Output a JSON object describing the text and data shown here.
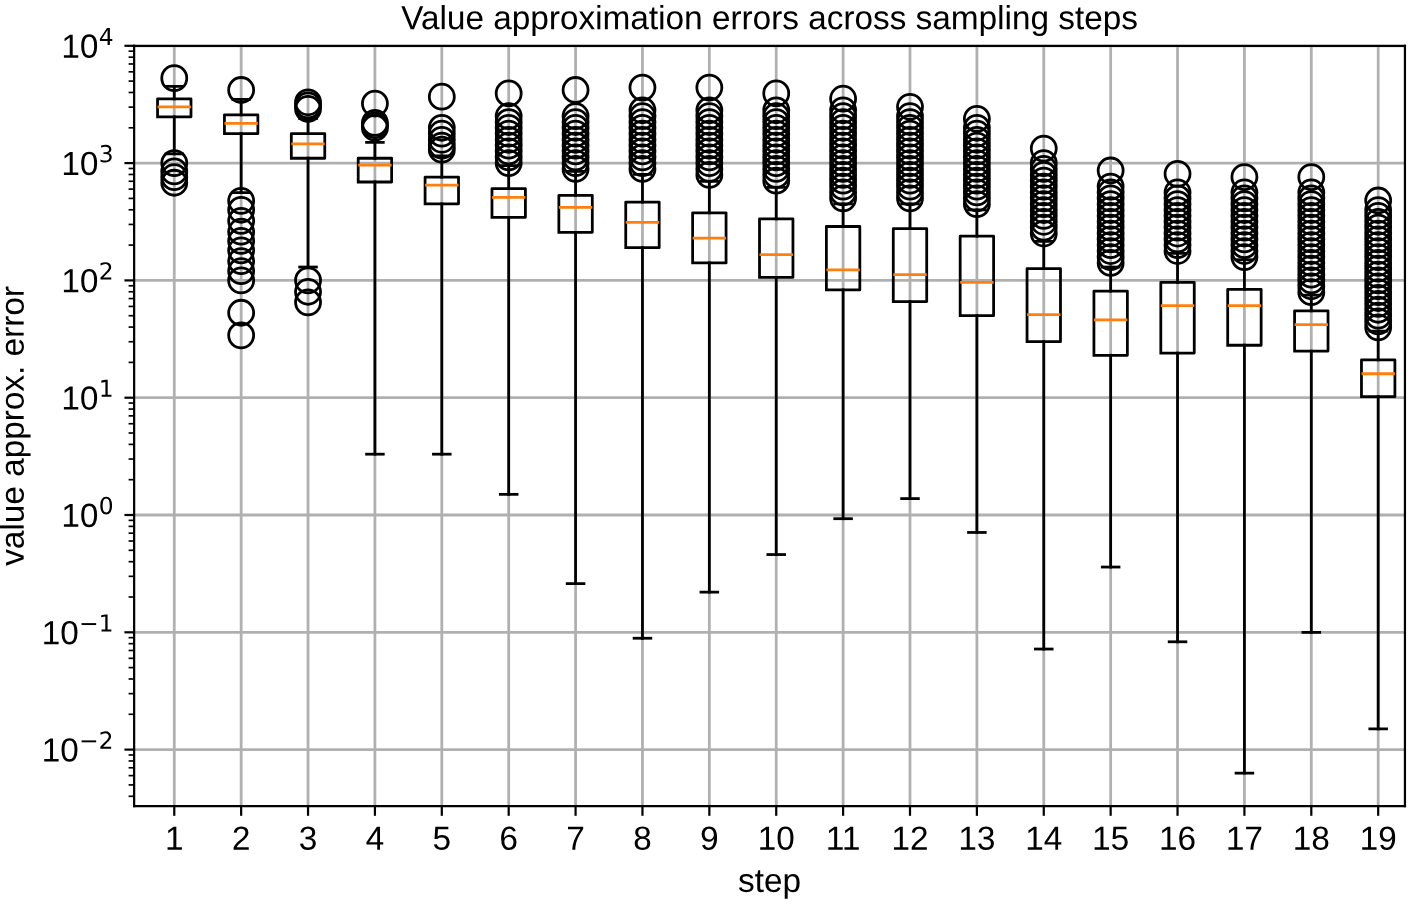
{
  "chart_data": {
    "type": "box",
    "title": "Value approximation errors across sampling steps",
    "xlabel": "step",
    "ylabel": "value approx. error",
    "categories": [
      "1",
      "2",
      "3",
      "4",
      "5",
      "6",
      "7",
      "8",
      "9",
      "10",
      "11",
      "12",
      "13",
      "14",
      "15",
      "16",
      "17",
      "18",
      "19"
    ],
    "log": "y",
    "grid": true,
    "color": "#000000",
    "ylim": [
      0.0033,
      10000
    ],
    "yticks": [
      {
        "value": 0.01,
        "label": "10$^{−2}$"
      },
      {
        "value": 0.1,
        "label": "10$^{−1}$"
      },
      {
        "value": 1,
        "label": "10$^{0}$"
      },
      {
        "value": 10,
        "label": "10$^{1}$"
      },
      {
        "value": 100,
        "label": "10$^{2}$"
      },
      {
        "value": 1000,
        "label": "10$^{3}$"
      },
      {
        "value": 10000,
        "label": "10$^{4}$"
      }
    ],
    "boxes": [
      {
        "low": 1200,
        "q1": 2480,
        "median": 3020,
        "q3": 3530,
        "high": 4500,
        "outliers": [
          5300,
          1000,
          850,
          760,
          680
        ]
      },
      {
        "low": 560,
        "q1": 1780,
        "median": 2180,
        "q3": 2580,
        "high": 3500,
        "outliers": [
          4200,
          477,
          400,
          322,
          260,
          217,
          180,
          146,
          120,
          100,
          53,
          34
        ]
      },
      {
        "low": 130,
        "q1": 1100,
        "median": 1460,
        "q3": 1780,
        "high": 2400,
        "outliers": [
          2900,
          3100,
          3300,
          100,
          80,
          65
        ]
      },
      {
        "low": 3.3,
        "q1": 690,
        "median": 960,
        "q3": 1100,
        "high": 1500,
        "outliers": [
          2000,
          2100,
          2200,
          3220
        ]
      },
      {
        "low": 3.3,
        "q1": 450,
        "median": 650,
        "q3": 760,
        "high": 1150,
        "outliers": [
          1300,
          1410,
          1580,
          1780,
          2000,
          3680
        ]
      },
      {
        "low": 1.5,
        "q1": 345,
        "median": 510,
        "q3": 605,
        "high": 950,
        "outliers": [
          1000,
          1120,
          1260,
          1410,
          1580,
          1780,
          2000,
          2240,
          2510,
          3930
        ]
      },
      {
        "low": 0.26,
        "q1": 257,
        "median": 420,
        "q3": 530,
        "high": 850,
        "outliers": [
          891,
          1000,
          1120,
          1260,
          1410,
          1580,
          1780,
          2000,
          2240,
          2510,
          4200
        ]
      },
      {
        "low": 0.089,
        "q1": 190,
        "median": 313,
        "q3": 465,
        "high": 800,
        "outliers": [
          891,
          1000,
          1120,
          1260,
          1410,
          1580,
          1780,
          2000,
          2240,
          2510,
          2820,
          4400
        ]
      },
      {
        "low": 0.22,
        "q1": 141,
        "median": 229,
        "q3": 377,
        "high": 700,
        "outliers": [
          794,
          891,
          1000,
          1120,
          1260,
          1410,
          1580,
          1780,
          2000,
          2240,
          2510,
          2820,
          4400
        ]
      },
      {
        "low": 0.46,
        "q1": 106,
        "median": 166,
        "q3": 335,
        "high": 620,
        "outliers": [
          708,
          794,
          891,
          1000,
          1120,
          1260,
          1410,
          1580,
          1780,
          2000,
          2240,
          2510,
          2820,
          3930
        ]
      },
      {
        "low": 0.93,
        "q1": 83,
        "median": 123,
        "q3": 288,
        "high": 450,
        "outliers": [
          501,
          562,
          631,
          708,
          794,
          891,
          1000,
          1120,
          1260,
          1410,
          1580,
          1780,
          2000,
          2240,
          2510,
          2820,
          3540
        ]
      },
      {
        "low": 1.38,
        "q1": 66,
        "median": 112,
        "q3": 276,
        "high": 450,
        "outliers": [
          501,
          562,
          631,
          708,
          794,
          891,
          1000,
          1120,
          1260,
          1410,
          1580,
          1780,
          2000,
          2240,
          2510,
          3020
        ]
      },
      {
        "low": 0.71,
        "q1": 50,
        "median": 96,
        "q3": 238,
        "high": 400,
        "outliers": [
          447,
          501,
          562,
          631,
          708,
          794,
          891,
          1000,
          1120,
          1260,
          1410,
          1580,
          1780,
          2000,
          2380
        ]
      },
      {
        "low": 0.072,
        "q1": 30,
        "median": 51,
        "q3": 126,
        "high": 215,
        "outliers": [
          251,
          282,
          316,
          355,
          398,
          447,
          501,
          562,
          631,
          708,
          794,
          891,
          1000,
          1330
        ]
      },
      {
        "low": 0.36,
        "q1": 23,
        "median": 46,
        "q3": 81,
        "high": 130,
        "outliers": [
          141,
          158,
          178,
          200,
          224,
          251,
          282,
          316,
          355,
          398,
          447,
          501,
          562,
          631,
          865
        ]
      },
      {
        "low": 0.083,
        "q1": 24,
        "median": 61,
        "q3": 96,
        "high": 170,
        "outliers": [
          178,
          200,
          224,
          251,
          282,
          316,
          355,
          398,
          447,
          501,
          562,
          810
        ]
      },
      {
        "low": 0.0063,
        "q1": 28,
        "median": 61,
        "q3": 84,
        "high": 150,
        "outliers": [
          158,
          178,
          200,
          224,
          251,
          282,
          316,
          355,
          398,
          447,
          501,
          562,
          760
        ]
      },
      {
        "low": 0.1,
        "q1": 25,
        "median": 42,
        "q3": 55,
        "high": 75,
        "outliers": [
          79.4,
          89.1,
          100,
          112,
          126,
          141,
          158,
          178,
          200,
          224,
          251,
          282,
          316,
          355,
          398,
          447,
          501,
          562,
          760
        ]
      },
      {
        "low": 0.015,
        "q1": 10.2,
        "median": 16,
        "q3": 21,
        "high": 37,
        "outliers": [
          39.8,
          44.7,
          50.1,
          56.2,
          63.1,
          70.8,
          79.4,
          89.1,
          100,
          112,
          126,
          141,
          158,
          178,
          200,
          224,
          251,
          282,
          316,
          355,
          398,
          480
        ]
      }
    ]
  }
}
